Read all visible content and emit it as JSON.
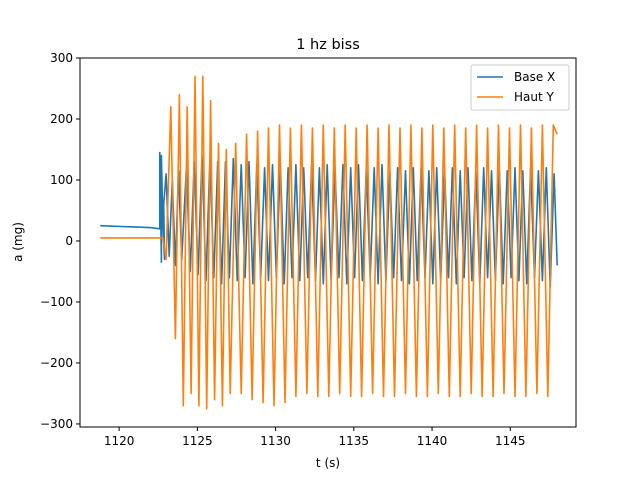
{
  "chart_data": {
    "type": "line",
    "title": "1 hz biss",
    "xlabel": "t (s)",
    "ylabel": "a (mg)",
    "xlim": [
      1117.5,
      1149.2
    ],
    "ylim": [
      -305,
      300
    ],
    "xticks": [
      1120,
      1125,
      1130,
      1135,
      1140,
      1145
    ],
    "yticks": [
      -300,
      -200,
      -100,
      0,
      100,
      200,
      300
    ],
    "ytick_labels": [
      "−300",
      "−200",
      "−100",
      "0",
      "100",
      "200",
      "300"
    ],
    "grid": false,
    "legend_position": "top-right",
    "series": [
      {
        "name": "Base X",
        "color": "#1f77b4",
        "x": [
          1118.8,
          1122.0,
          1122.6,
          1122.6,
          1122.7,
          1122.7,
          1122.8,
          1122.9,
          1122.85,
          1123.0,
          1123.2,
          1123.4,
          1123.6,
          1123.8,
          1124.0,
          1124.3,
          1124.55,
          1124.8,
          1125.05,
          1125.3,
          1125.55,
          1125.8,
          1126.05,
          1126.3,
          1126.55,
          1126.8,
          1127.05,
          1127.3,
          1127.55,
          1127.8,
          1128.05,
          1128.3,
          1128.55,
          1128.8,
          1129.05,
          1129.3,
          1129.55,
          1129.8,
          1130.05,
          1130.3,
          1130.55,
          1130.8,
          1131.05,
          1131.3,
          1131.55,
          1131.8,
          1132.05,
          1132.3,
          1132.55,
          1132.8,
          1133.05,
          1133.3,
          1133.55,
          1133.8,
          1134.05,
          1134.3,
          1134.55,
          1134.8,
          1135.05,
          1135.3,
          1135.55,
          1135.8,
          1136.05,
          1136.3,
          1136.55,
          1136.8,
          1137.05,
          1137.3,
          1137.55,
          1137.8,
          1138.05,
          1138.3,
          1138.55,
          1138.8,
          1139.05,
          1139.3,
          1139.55,
          1139.8,
          1140.05,
          1140.3,
          1140.55,
          1140.8,
          1141.05,
          1141.3,
          1141.55,
          1141.8,
          1142.05,
          1142.3,
          1142.55,
          1142.8,
          1143.05,
          1143.3,
          1143.55,
          1143.8,
          1144.05,
          1144.3,
          1144.55,
          1144.8,
          1145.05,
          1145.3,
          1145.55,
          1145.8,
          1146.05,
          1146.3,
          1146.55,
          1146.8,
          1147.05,
          1147.3,
          1147.55,
          1147.8,
          1148.0
        ],
        "y": [
          25,
          22,
          20,
          145,
          -35,
          140,
          25,
          -30,
          60,
          110,
          -25,
          100,
          -40,
          115,
          -30,
          120,
          -50,
          130,
          -55,
          140,
          -65,
          135,
          -60,
          130,
          -70,
          130,
          -60,
          135,
          -65,
          125,
          -60,
          130,
          -70,
          125,
          -60,
          120,
          -65,
          125,
          -60,
          130,
          -70,
          120,
          -60,
          125,
          -65,
          120,
          -60,
          125,
          -65,
          120,
          -70,
          125,
          -65,
          120,
          -60,
          125,
          -70,
          120,
          -60,
          125,
          -65,
          120,
          -60,
          120,
          -70,
          125,
          -65,
          115,
          -60,
          120,
          -65,
          115,
          -70,
          120,
          -65,
          120,
          -60,
          115,
          -70,
          120,
          -65,
          115,
          -60,
          120,
          -70,
          115,
          -60,
          120,
          -65,
          115,
          -70,
          120,
          -60,
          115,
          -65,
          120,
          -70,
          115,
          -60,
          120,
          -65,
          115,
          -70,
          120,
          -60,
          115,
          -65,
          120,
          -75,
          110,
          -40
        ]
      },
      {
        "name": "Haut Y",
        "color": "#ff7f0e",
        "x": [
          1118.8,
          1121.5,
          1122.8,
          1123.0,
          1123.3,
          1123.6,
          1123.85,
          1124.1,
          1124.35,
          1124.6,
          1124.85,
          1125.1,
          1125.35,
          1125.6,
          1125.85,
          1126.1,
          1126.35,
          1126.6,
          1126.85,
          1127.1,
          1127.45,
          1127.8,
          1128.15,
          1128.5,
          1128.85,
          1129.2,
          1129.55,
          1129.9,
          1130.25,
          1130.6,
          1130.95,
          1131.3,
          1131.65,
          1132.0,
          1132.35,
          1132.7,
          1133.05,
          1133.4,
          1133.75,
          1134.1,
          1134.45,
          1134.8,
          1135.15,
          1135.5,
          1135.85,
          1136.2,
          1136.55,
          1136.9,
          1137.25,
          1137.6,
          1137.95,
          1138.3,
          1138.65,
          1139.0,
          1139.35,
          1139.7,
          1140.05,
          1140.4,
          1140.75,
          1141.1,
          1141.45,
          1141.8,
          1142.15,
          1142.5,
          1142.85,
          1143.2,
          1143.55,
          1143.9,
          1144.25,
          1144.6,
          1144.95,
          1145.3,
          1145.65,
          1146.0,
          1146.35,
          1146.7,
          1147.05,
          1147.4,
          1147.75,
          1148.0
        ],
        "y": [
          5,
          5,
          5,
          -30,
          220,
          -160,
          240,
          -270,
          220,
          -250,
          270,
          -270,
          270,
          -275,
          230,
          -260,
          160,
          -270,
          150,
          -250,
          160,
          -250,
          175,
          -260,
          180,
          -265,
          185,
          -270,
          190,
          -265,
          185,
          -255,
          190,
          -250,
          185,
          -255,
          190,
          -255,
          185,
          -250,
          190,
          -255,
          185,
          -255,
          190,
          -250,
          185,
          -255,
          190,
          -255,
          185,
          -250,
          190,
          -255,
          185,
          -255,
          190,
          -250,
          185,
          -255,
          190,
          -255,
          185,
          -250,
          190,
          -255,
          185,
          -255,
          190,
          -250,
          185,
          -255,
          190,
          -255,
          185,
          -250,
          190,
          -255,
          190,
          175
        ]
      }
    ]
  }
}
